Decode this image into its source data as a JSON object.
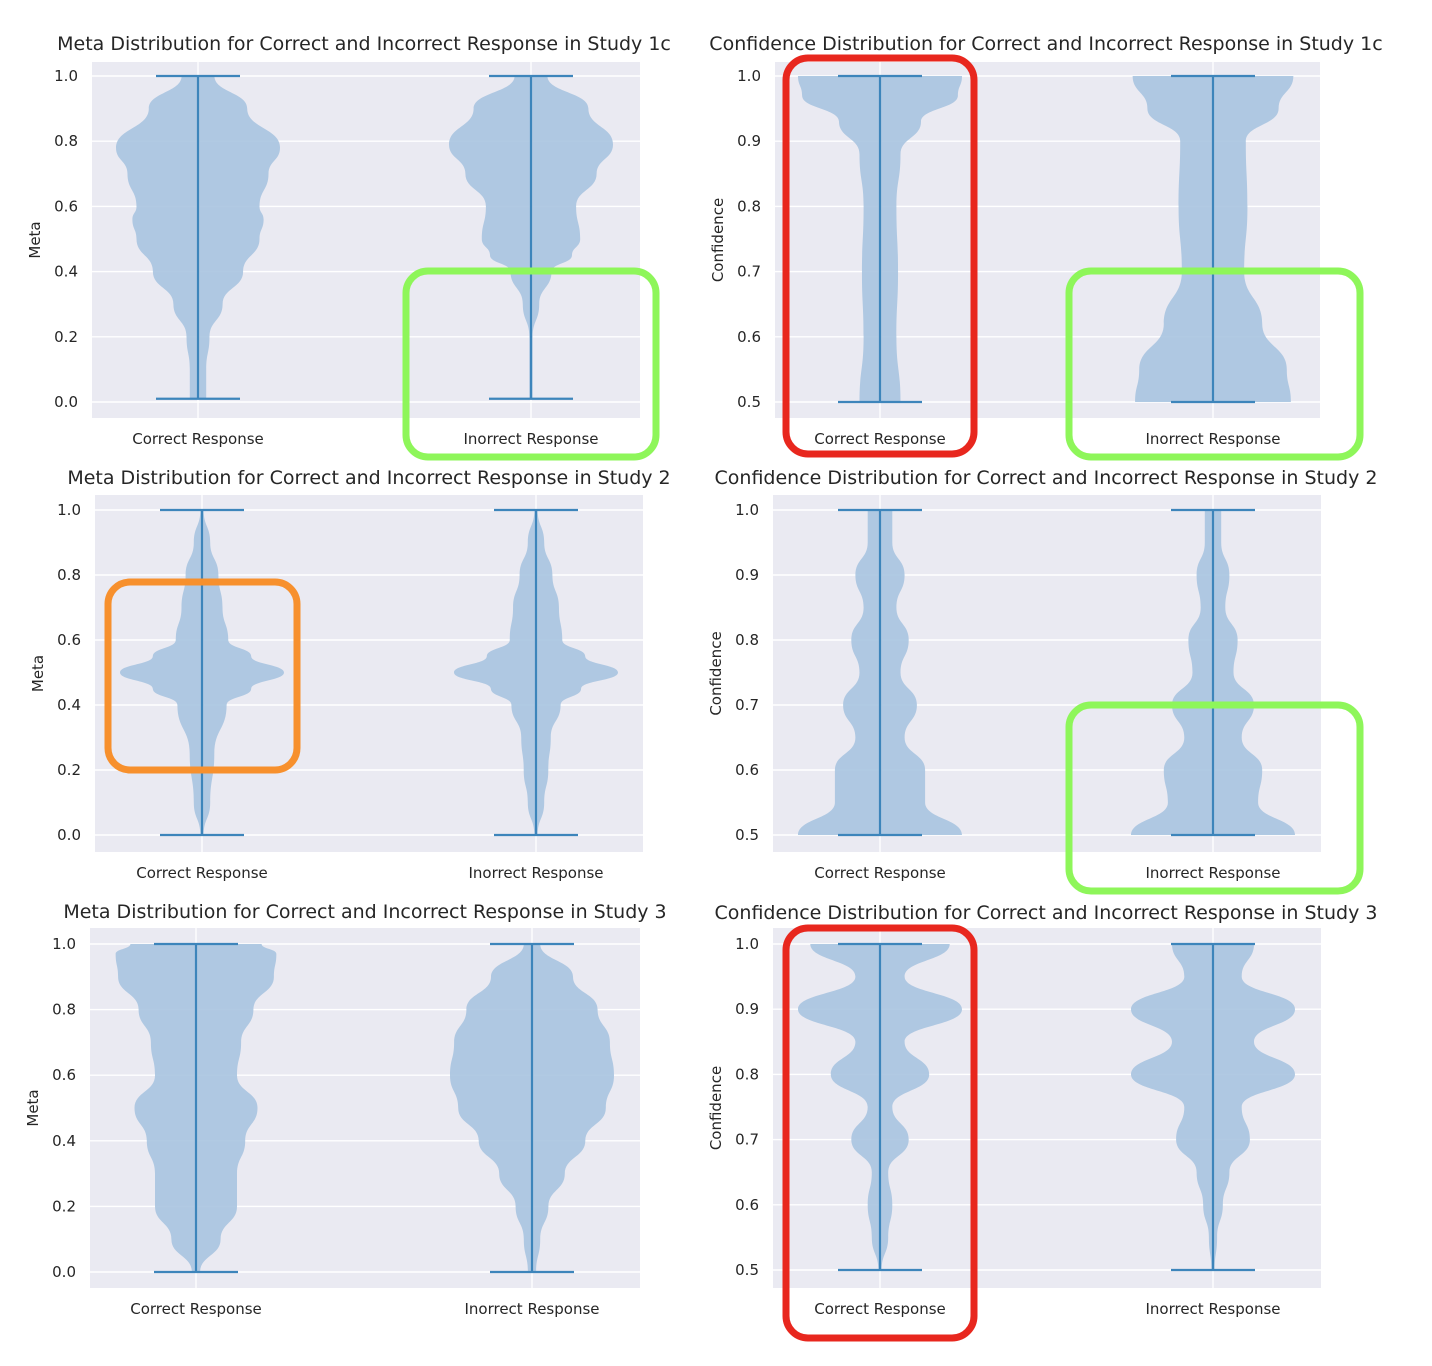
{
  "chart_data": [
    {
      "type": "violin",
      "title": "Meta Distribution for Correct and Incorrect Response in Study 1c",
      "ylabel": "Meta",
      "categories": [
        "Correct Response",
        "Inorrect Response"
      ],
      "ylim": [
        0.0,
        1.0
      ],
      "yticks": [
        "0.0",
        "0.2",
        "0.4",
        "0.6",
        "0.8",
        "1.0"
      ],
      "grid": true,
      "series": [
        {
          "min": 0.01,
          "max": 1.0,
          "density_y": [
            0.01,
            0.1,
            0.2,
            0.3,
            0.4,
            0.5,
            0.56,
            0.6,
            0.7,
            0.78,
            0.9,
            1.0
          ],
          "density_w": [
            0.1,
            0.1,
            0.14,
            0.3,
            0.55,
            0.75,
            0.8,
            0.75,
            0.86,
            1.0,
            0.6,
            0.2
          ]
        },
        {
          "min": 0.01,
          "max": 1.0,
          "density_y": [
            0.01,
            0.2,
            0.3,
            0.4,
            0.45,
            0.5,
            0.6,
            0.7,
            0.79,
            0.9,
            1.0
          ],
          "density_w": [
            0.02,
            0.02,
            0.1,
            0.25,
            0.5,
            0.6,
            0.55,
            0.8,
            1.0,
            0.7,
            0.2
          ]
        }
      ]
    },
    {
      "type": "violin",
      "title": "Confidence Distribution for Correct and Incorrect Response in Study 1c",
      "ylabel": "Confidence",
      "categories": [
        "Correct Response",
        "Inorrect Response"
      ],
      "ylim": [
        0.5,
        1.0
      ],
      "yticks": [
        "0.5",
        "0.6",
        "0.7",
        "0.8",
        "0.9",
        "1.0"
      ],
      "grid": true,
      "series": [
        {
          "min": 0.5,
          "max": 1.0,
          "density_y": [
            0.5,
            0.6,
            0.7,
            0.8,
            0.88,
            0.93,
            0.97,
            1.0
          ],
          "density_w": [
            0.25,
            0.2,
            0.22,
            0.2,
            0.25,
            0.5,
            0.95,
            1.0
          ]
        },
        {
          "min": 0.5,
          "max": 1.0,
          "density_y": [
            0.5,
            0.55,
            0.62,
            0.7,
            0.8,
            0.9,
            0.95,
            1.0
          ],
          "density_w": [
            0.95,
            0.9,
            0.6,
            0.38,
            0.42,
            0.4,
            0.8,
            0.98
          ]
        }
      ]
    },
    {
      "type": "violin",
      "title": "Meta Distribution for Correct and Incorrect Response in Study 2",
      "ylabel": "Meta",
      "categories": [
        "Correct Response",
        "Inorrect Response"
      ],
      "ylim": [
        0.0,
        1.0
      ],
      "yticks": [
        "0.0",
        "0.2",
        "0.4",
        "0.6",
        "0.8",
        "1.0"
      ],
      "grid": true,
      "series": [
        {
          "min": 0.0,
          "max": 1.0,
          "density_y": [
            0.0,
            0.1,
            0.25,
            0.4,
            0.45,
            0.5,
            0.55,
            0.6,
            0.7,
            0.8,
            0.9,
            1.0
          ],
          "density_w": [
            0.02,
            0.1,
            0.15,
            0.3,
            0.6,
            1.0,
            0.6,
            0.32,
            0.25,
            0.2,
            0.1,
            0.02
          ]
        },
        {
          "min": 0.0,
          "max": 1.0,
          "density_y": [
            0.0,
            0.1,
            0.2,
            0.3,
            0.4,
            0.45,
            0.5,
            0.55,
            0.6,
            0.7,
            0.8,
            0.9,
            1.0
          ],
          "density_w": [
            0.02,
            0.1,
            0.15,
            0.18,
            0.3,
            0.55,
            1.0,
            0.6,
            0.32,
            0.28,
            0.2,
            0.1,
            0.02
          ]
        }
      ]
    },
    {
      "type": "violin",
      "title": "Confidence Distribution for Correct and Incorrect Response in Study 2",
      "ylabel": "Confidence",
      "categories": [
        "Correct Response",
        "Inorrect Response"
      ],
      "ylim": [
        0.5,
        1.0
      ],
      "yticks": [
        "0.5",
        "0.6",
        "0.7",
        "0.8",
        "0.9",
        "1.0"
      ],
      "grid": true,
      "series": [
        {
          "min": 0.5,
          "max": 1.0,
          "density_y": [
            0.5,
            0.55,
            0.6,
            0.65,
            0.7,
            0.75,
            0.8,
            0.85,
            0.9,
            0.95,
            1.0
          ],
          "density_w": [
            1.0,
            0.55,
            0.55,
            0.3,
            0.45,
            0.25,
            0.35,
            0.2,
            0.3,
            0.15,
            0.15
          ]
        },
        {
          "min": 0.5,
          "max": 1.0,
          "density_y": [
            0.5,
            0.55,
            0.6,
            0.65,
            0.7,
            0.75,
            0.8,
            0.85,
            0.9,
            0.95,
            1.0
          ],
          "density_w": [
            1.0,
            0.55,
            0.6,
            0.35,
            0.5,
            0.25,
            0.3,
            0.15,
            0.2,
            0.1,
            0.1
          ]
        }
      ]
    },
    {
      "type": "violin",
      "title": "Meta Distribution for Correct and Incorrect Response in Study 3",
      "ylabel": "Meta",
      "categories": [
        "Correct Response",
        "Inorrect Response"
      ],
      "ylim": [
        0.0,
        1.0
      ],
      "yticks": [
        "0.0",
        "0.2",
        "0.4",
        "0.6",
        "0.8",
        "1.0"
      ],
      "grid": true,
      "series": [
        {
          "min": 0.0,
          "max": 1.0,
          "density_y": [
            0.0,
            0.1,
            0.2,
            0.3,
            0.4,
            0.5,
            0.6,
            0.7,
            0.8,
            0.9,
            0.97,
            1.0
          ],
          "density_w": [
            0.05,
            0.3,
            0.5,
            0.5,
            0.6,
            0.75,
            0.5,
            0.55,
            0.7,
            0.95,
            0.98,
            0.8
          ]
        },
        {
          "min": 0.0,
          "max": 1.0,
          "density_y": [
            0.0,
            0.1,
            0.2,
            0.3,
            0.4,
            0.5,
            0.6,
            0.7,
            0.8,
            0.9,
            1.0
          ],
          "density_w": [
            0.05,
            0.1,
            0.2,
            0.4,
            0.65,
            0.9,
            1.0,
            0.95,
            0.8,
            0.5,
            0.1
          ]
        }
      ]
    },
    {
      "type": "violin",
      "title": "Confidence Distribution for Correct and Incorrect Response in Study 3",
      "ylabel": "Confidence",
      "categories": [
        "Correct Response",
        "Inorrect Response"
      ],
      "ylim": [
        0.5,
        1.0
      ],
      "yticks": [
        "0.5",
        "0.6",
        "0.7",
        "0.8",
        "0.9",
        "1.0"
      ],
      "grid": true,
      "series": [
        {
          "min": 0.5,
          "max": 1.0,
          "density_y": [
            0.5,
            0.55,
            0.6,
            0.65,
            0.7,
            0.75,
            0.8,
            0.85,
            0.9,
            0.95,
            1.0
          ],
          "density_w": [
            0.02,
            0.1,
            0.15,
            0.1,
            0.35,
            0.15,
            0.6,
            0.3,
            1.0,
            0.3,
            0.85
          ]
        },
        {
          "min": 0.5,
          "max": 1.0,
          "density_y": [
            0.5,
            0.55,
            0.6,
            0.65,
            0.7,
            0.75,
            0.8,
            0.85,
            0.9,
            0.95,
            1.0
          ],
          "density_w": [
            0.02,
            0.05,
            0.12,
            0.2,
            0.45,
            0.35,
            1.0,
            0.5,
            1.0,
            0.35,
            0.5
          ]
        }
      ]
    }
  ],
  "annotations": {
    "colors": {
      "red": "#e8271e",
      "green": "#8ef65a",
      "orange": "#f7902d"
    },
    "boxes": [
      {
        "panel": 1,
        "category": 1,
        "color": "green"
      },
      {
        "panel": 2,
        "category": 0,
        "color": "red"
      },
      {
        "panel": 2,
        "category": 1,
        "color": "green"
      },
      {
        "panel": 3,
        "category": 0,
        "color": "orange"
      },
      {
        "panel": 4,
        "category": 1,
        "color": "green"
      },
      {
        "panel": 6,
        "category": 0,
        "color": "red"
      }
    ]
  },
  "style": {
    "axes_bg": "#eaeaf2",
    "grid": "#ffffff",
    "violin_fill": "#a9c4e0",
    "line": "#3d85bb"
  }
}
